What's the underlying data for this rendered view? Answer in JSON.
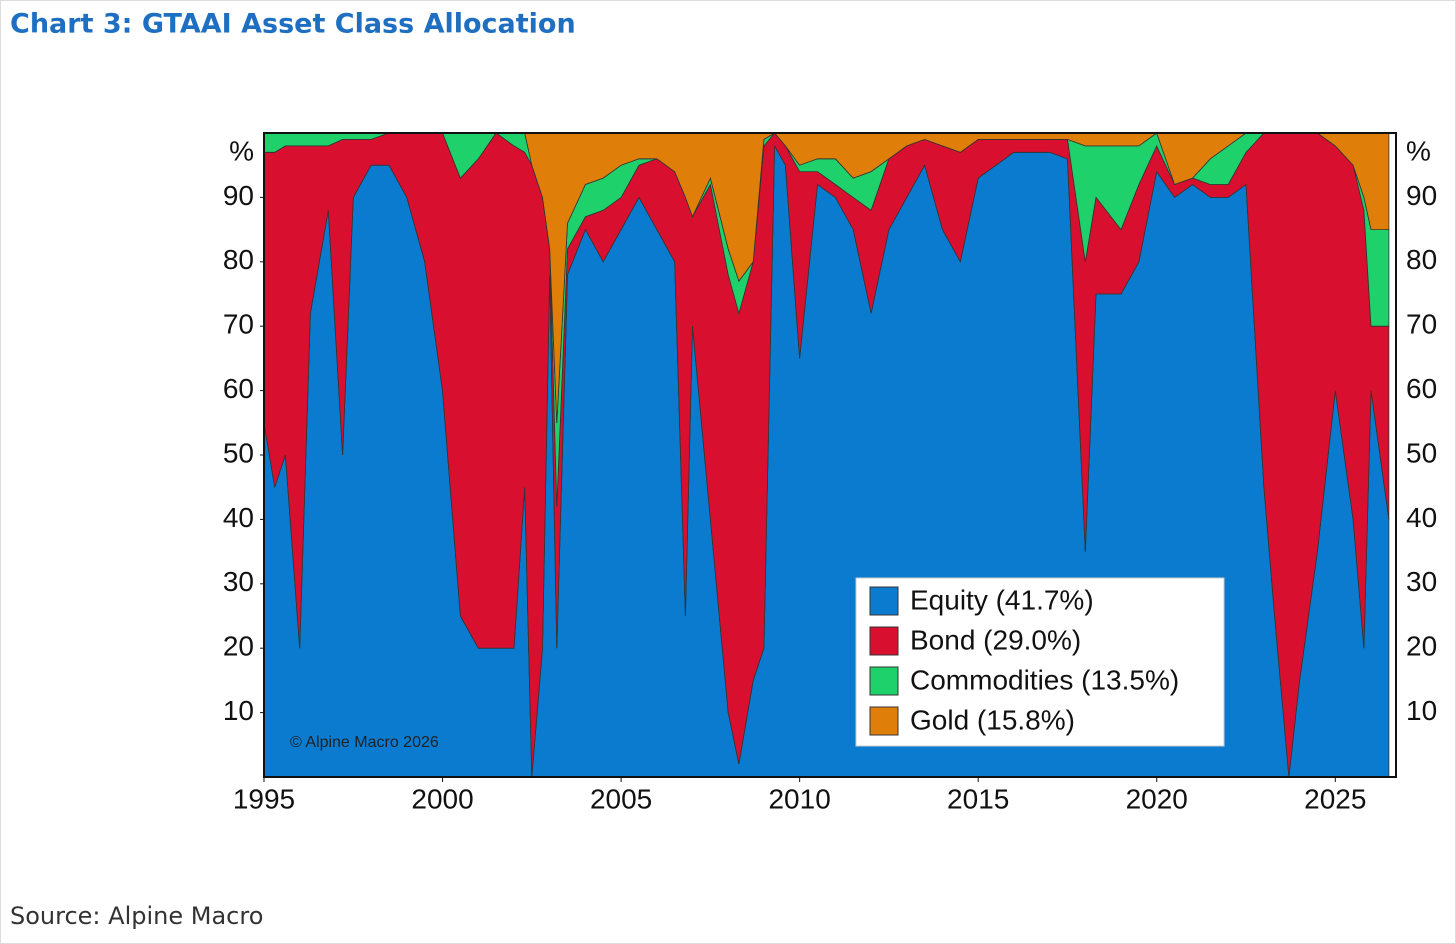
{
  "chart_data": {
    "type": "stacked_area",
    "title": "Chart 3: GTAAI Asset Class Allocation",
    "y_label": "%",
    "annotation": "© Alpine Macro 2026",
    "source": "Source: Alpine Macro",
    "xlim": [
      1995,
      2026.7
    ],
    "xticks": [
      1995,
      2000,
      2005,
      2010,
      2015,
      2020,
      2025
    ],
    "ylim": [
      0,
      100
    ],
    "yticks": [
      10,
      20,
      30,
      40,
      50,
      60,
      70,
      80,
      90
    ],
    "legend": "bottom-right",
    "x": [
      1995.0,
      1995.3,
      1995.6,
      1996.0,
      1996.3,
      1996.8,
      1997.2,
      1997.5,
      1998.0,
      1998.5,
      1999.0,
      1999.5,
      2000.0,
      2000.5,
      2001.0,
      2001.5,
      2002.0,
      2002.3,
      2002.5,
      2002.8,
      2003.0,
      2003.2,
      2003.5,
      2004.0,
      2004.5,
      2005.0,
      2005.5,
      2006.0,
      2006.5,
      2006.8,
      2007.0,
      2007.5,
      2008.0,
      2008.3,
      2008.7,
      2009.0,
      2009.3,
      2009.6,
      2010.0,
      2010.5,
      2011.0,
      2011.5,
      2012.0,
      2012.5,
      2013.0,
      2013.5,
      2014.0,
      2014.5,
      2015.0,
      2016.0,
      2017.0,
      2017.5,
      2018.0,
      2018.3,
      2019.0,
      2019.5,
      2020.0,
      2020.5,
      2021.0,
      2021.5,
      2022.0,
      2022.5,
      2023.0,
      2023.3,
      2023.7,
      2024.0,
      2024.5,
      2025.0,
      2025.5,
      2025.8,
      2026.0,
      2026.5
    ],
    "series": [
      {
        "name": "Equity (41.7%)",
        "color": "#0b7bd0",
        "values": [
          55,
          45,
          50,
          20,
          72,
          88,
          50,
          90,
          95,
          95,
          90,
          80,
          60,
          25,
          20,
          20,
          20,
          45,
          0,
          20,
          78,
          20,
          78,
          85,
          80,
          85,
          90,
          85,
          80,
          25,
          70,
          40,
          10,
          2,
          15,
          20,
          98,
          95,
          65,
          92,
          90,
          85,
          72,
          85,
          90,
          95,
          85,
          80,
          93,
          97,
          97,
          96,
          35,
          75,
          75,
          80,
          94,
          90,
          92,
          90,
          90,
          92,
          45,
          25,
          0,
          15,
          35,
          60,
          40,
          20,
          60,
          40
        ]
      },
      {
        "name": "Bond (29.0%)",
        "color": "#d90f2f",
        "values": [
          42,
          52,
          48,
          78,
          26,
          10,
          49,
          9,
          4,
          5,
          10,
          20,
          40,
          68,
          76,
          80,
          78,
          52,
          95,
          70,
          4,
          22,
          4,
          2,
          8,
          5,
          5,
          11,
          14,
          65,
          17,
          52,
          68,
          70,
          65,
          78,
          2,
          3,
          29,
          2,
          2,
          5,
          16,
          11,
          8,
          4,
          13,
          17,
          6,
          2,
          2,
          3,
          45,
          15,
          10,
          12,
          4,
          2,
          1,
          2,
          2,
          5,
          55,
          75,
          100,
          85,
          65,
          38,
          55,
          68,
          10,
          30
        ]
      },
      {
        "name": "Commodities (13.5%)",
        "color": "#1fd16a",
        "values": [
          3,
          3,
          2,
          2,
          2,
          2,
          1,
          1,
          1,
          0,
          0,
          0,
          0,
          7,
          4,
          0,
          2,
          3,
          0,
          0,
          0,
          13,
          4,
          5,
          5,
          5,
          1,
          0,
          0,
          0,
          0,
          1,
          4,
          5,
          0,
          1,
          0,
          0,
          1,
          2,
          4,
          3,
          6,
          0,
          0,
          0,
          0,
          0,
          0,
          0,
          0,
          0,
          18,
          8,
          13,
          6,
          2,
          0,
          0,
          4,
          6,
          3,
          0,
          0,
          0,
          0,
          0,
          0,
          0,
          2,
          15,
          15
        ]
      },
      {
        "name": "Gold (15.8%)",
        "color": "#df7f0a",
        "values": [
          0,
          0,
          0,
          0,
          0,
          0,
          0,
          0,
          0,
          0,
          0,
          0,
          0,
          0,
          0,
          0,
          0,
          0,
          5,
          10,
          18,
          45,
          14,
          8,
          7,
          5,
          4,
          4,
          6,
          10,
          13,
          7,
          18,
          23,
          20,
          1,
          0,
          2,
          5,
          4,
          4,
          7,
          6,
          4,
          2,
          1,
          2,
          3,
          1,
          1,
          1,
          1,
          2,
          2,
          2,
          2,
          0,
          8,
          7,
          4,
          2,
          0,
          0,
          0,
          0,
          0,
          0,
          2,
          5,
          10,
          15,
          15
        ]
      }
    ]
  }
}
